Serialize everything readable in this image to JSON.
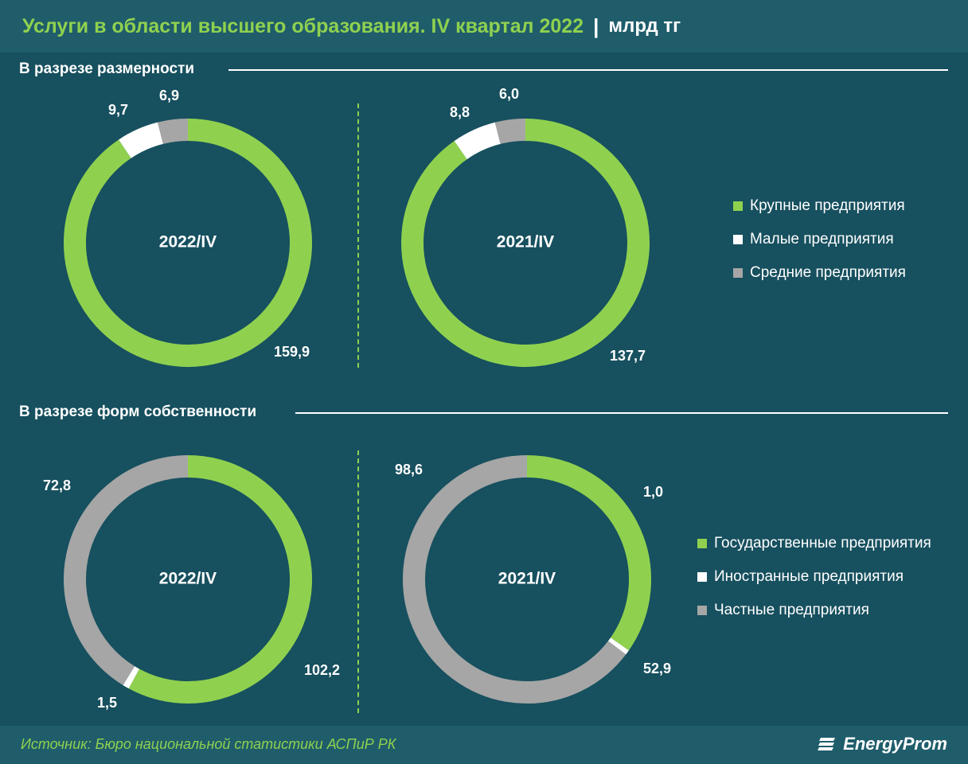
{
  "header": {
    "title": "Услуги в области высшего образования. IV квартал 2022",
    "separator": "|",
    "unit": "млрд тг"
  },
  "sections": [
    {
      "title": "В разрезе размерности"
    },
    {
      "title": "В разрезе форм собственности"
    }
  ],
  "colors": {
    "green": "#8fd14f",
    "white": "#ffffff",
    "gray": "#a6a6a6"
  },
  "legends": [
    {
      "items": [
        {
          "label": "Крупные предприятия",
          "color": "#8fd14f"
        },
        {
          "label": "Малые предприятия",
          "color": "#ffffff"
        },
        {
          "label": "Средние предприятия",
          "color": "#a6a6a6"
        }
      ]
    },
    {
      "items": [
        {
          "label": "Государственные предприятия",
          "color": "#8fd14f"
        },
        {
          "label": "Иностранные предприятия",
          "color": "#ffffff"
        },
        {
          "label": "Частные предприятия",
          "color": "#a6a6a6"
        }
      ]
    }
  ],
  "chart_data": [
    {
      "type": "pie",
      "center_label": "2022/IV",
      "categories": [
        "Крупные предприятия",
        "Малые предприятия",
        "Средние предприятия"
      ],
      "values": [
        159.9,
        9.7,
        6.9
      ],
      "value_labels": [
        "159,9",
        "9,7",
        "6,9"
      ],
      "colors": [
        "#8fd14f",
        "#ffffff",
        "#a6a6a6"
      ]
    },
    {
      "type": "pie",
      "center_label": "2021/IV",
      "categories": [
        "Крупные предприятия",
        "Малые предприятия",
        "Средние предприятия"
      ],
      "values": [
        137.7,
        8.8,
        6.0
      ],
      "value_labels": [
        "137,7",
        "8,8",
        "6,0"
      ],
      "colors": [
        "#8fd14f",
        "#ffffff",
        "#a6a6a6"
      ]
    },
    {
      "type": "pie",
      "center_label": "2022/IV",
      "categories": [
        "Государственные предприятия",
        "Иностранные предприятия",
        "Частные предприятия"
      ],
      "values": [
        102.2,
        1.5,
        72.8
      ],
      "value_labels": [
        "102,2",
        "1,5",
        "72,8"
      ],
      "colors": [
        "#8fd14f",
        "#ffffff",
        "#a6a6a6"
      ]
    },
    {
      "type": "pie",
      "center_label": "2021/IV",
      "categories": [
        "Государственные предприятия",
        "Иностранные предприятия",
        "Частные предприятия"
      ],
      "values": [
        52.9,
        1.0,
        98.6
      ],
      "value_labels": [
        "52,9",
        "1,0",
        "98,6"
      ],
      "colors": [
        "#8fd14f",
        "#ffffff",
        "#a6a6a6"
      ]
    }
  ],
  "footer": {
    "source": "Источник: Бюро национальной статистики АСПиР РК",
    "logo_text": "EnergyProm"
  }
}
